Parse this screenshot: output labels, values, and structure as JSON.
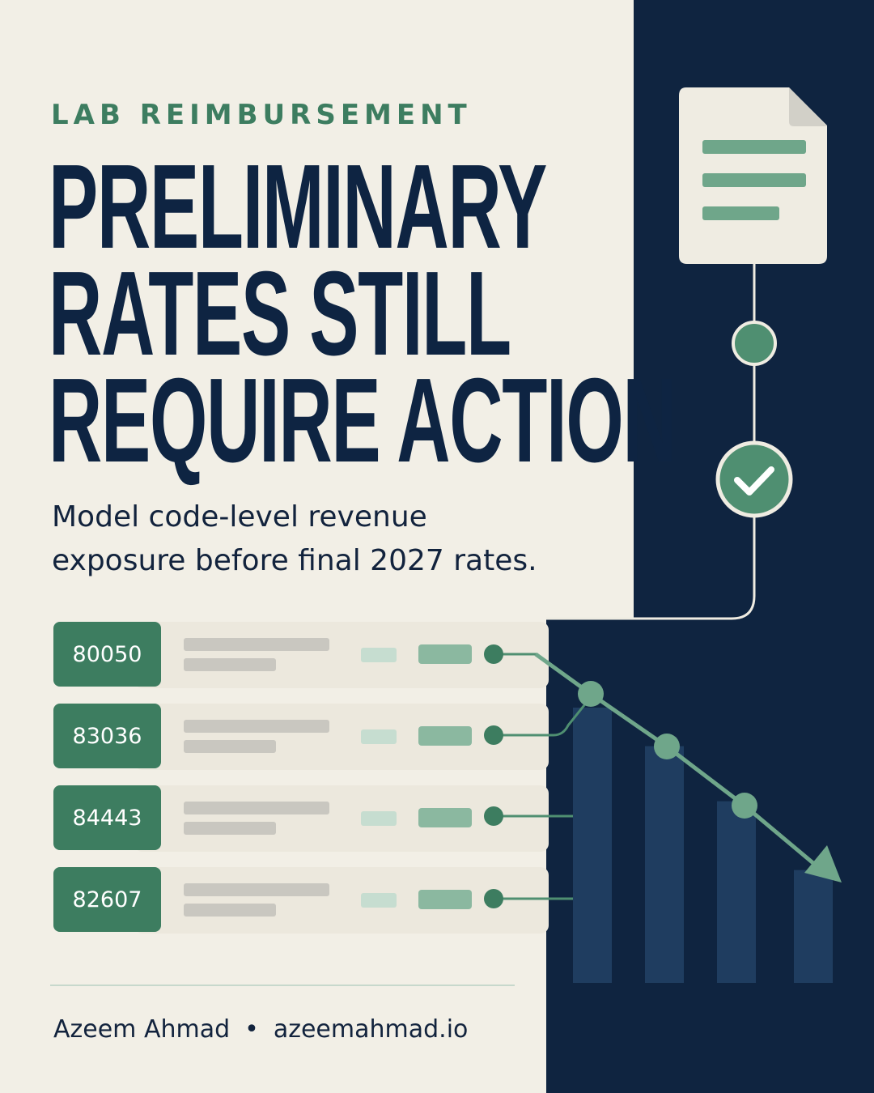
{
  "header": {
    "eyebrow": "LAB REIMBURSEMENT",
    "headline": [
      "PRELIMINARY",
      "RATES STILL",
      "REQUIRE ACTION"
    ],
    "subtitle": [
      "Model code-level revenue",
      "exposure before final 2027 rates."
    ]
  },
  "codes": [
    "80050",
    "83036",
    "84443",
    "82607"
  ],
  "chart_data": {
    "type": "bar",
    "categories": [
      "",
      "",
      "",
      ""
    ],
    "values": [
      100,
      86,
      66,
      41
    ],
    "trend_line": true,
    "grid": false
  },
  "footer": {
    "author": "Azeem Ahmad",
    "separator": "•",
    "site": "azeemahmad.io"
  },
  "colors": {
    "navy": "#0f2440",
    "green": "#3d7d60",
    "light_green": "#8bb8a0",
    "cream": "#f2efe6"
  },
  "icons": [
    "document-icon",
    "progress-dot-icon",
    "checkmark-icon",
    "trend-arrow-icon"
  ]
}
